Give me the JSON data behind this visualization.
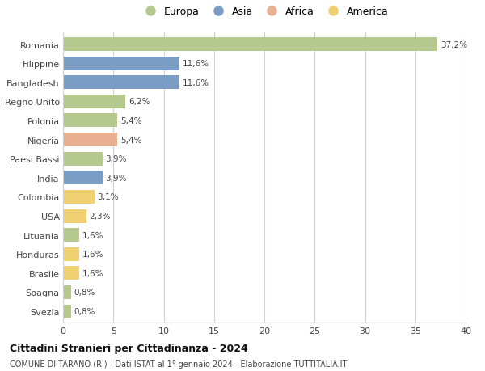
{
  "countries": [
    "Romania",
    "Filippine",
    "Bangladesh",
    "Regno Unito",
    "Polonia",
    "Nigeria",
    "Paesi Bassi",
    "India",
    "Colombia",
    "USA",
    "Lituania",
    "Honduras",
    "Brasile",
    "Spagna",
    "Svezia"
  ],
  "values": [
    37.2,
    11.6,
    11.6,
    6.2,
    5.4,
    5.4,
    3.9,
    3.9,
    3.1,
    2.3,
    1.6,
    1.6,
    1.6,
    0.8,
    0.8
  ],
  "labels": [
    "37,2%",
    "11,6%",
    "11,6%",
    "6,2%",
    "5,4%",
    "5,4%",
    "3,9%",
    "3,9%",
    "3,1%",
    "2,3%",
    "1,6%",
    "1,6%",
    "1,6%",
    "0,8%",
    "0,8%"
  ],
  "continents": [
    "Europa",
    "Asia",
    "Asia",
    "Europa",
    "Europa",
    "Africa",
    "Europa",
    "Asia",
    "America",
    "America",
    "Europa",
    "America",
    "America",
    "Europa",
    "Europa"
  ],
  "colors": {
    "Europa": "#b5c98e",
    "Asia": "#7a9dc5",
    "Africa": "#e8b090",
    "America": "#f0d070"
  },
  "legend_order": [
    "Europa",
    "Asia",
    "Africa",
    "America"
  ],
  "title": "Cittadini Stranieri per Cittadinanza - 2024",
  "subtitle": "COMUNE DI TARANO (RI) - Dati ISTAT al 1° gennaio 2024 - Elaborazione TUTTITALIA.IT",
  "xlim": [
    0,
    40
  ],
  "xticks": [
    0,
    5,
    10,
    15,
    20,
    25,
    30,
    35,
    40
  ],
  "bg_color": "#ffffff",
  "grid_color": "#d0d0d0",
  "bar_height": 0.72
}
